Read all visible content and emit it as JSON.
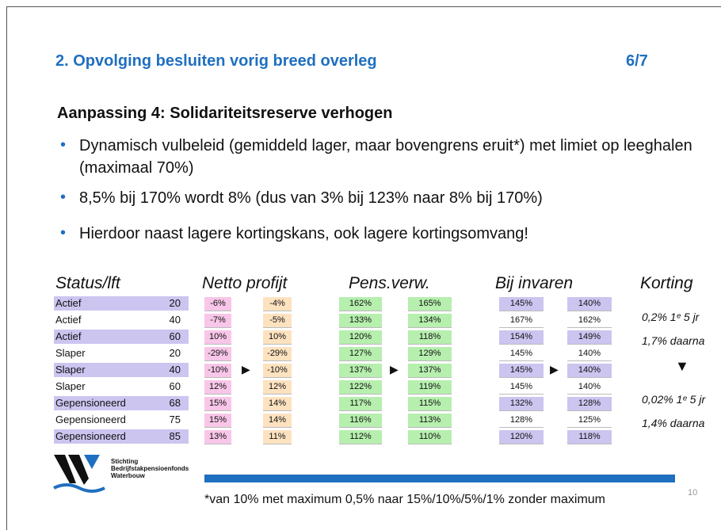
{
  "header": {
    "title": "2. Opvolging besluiten vorig breed overleg",
    "page": "6/7"
  },
  "heading": "Aanpassing 4: Solidariteitsreserve verhogen",
  "bullets": [
    "Dynamisch vulbeleid (gemiddeld lager, maar bovengrens eruit*) met limiet op leeghalen (maximaal 70%)",
    "8,5% bij 170% wordt 8% (dus van 3% bij 123% naar 8% bij 170%)",
    "Hierdoor naast lagere kortingskans, ook lagere kortingsomvang!"
  ],
  "table": {
    "columns": [
      "Status/lft",
      "Netto profijt",
      "Pens.verw.",
      "Bij invaren",
      "Korting"
    ],
    "rows": [
      {
        "status": "Actief",
        "age": "20",
        "netto": [
          "-6%",
          "-4%"
        ],
        "pens": [
          "162%",
          "165%"
        ],
        "invaren": [
          "145%",
          "140%"
        ]
      },
      {
        "status": "Actief",
        "age": "40",
        "netto": [
          "-7%",
          "-5%"
        ],
        "pens": [
          "133%",
          "134%"
        ],
        "invaren": [
          "167%",
          "162%"
        ]
      },
      {
        "status": "Actief",
        "age": "60",
        "netto": [
          "10%",
          "10%"
        ],
        "pens": [
          "120%",
          "118%"
        ],
        "invaren": [
          "154%",
          "149%"
        ]
      },
      {
        "status": "Slaper",
        "age": "20",
        "netto": [
          "-29%",
          "-29%"
        ],
        "pens": [
          "127%",
          "129%"
        ],
        "invaren": [
          "145%",
          "140%"
        ]
      },
      {
        "status": "Slaper",
        "age": "40",
        "netto": [
          "-10%",
          "-10%"
        ],
        "pens": [
          "137%",
          "137%"
        ],
        "invaren": [
          "145%",
          "140%"
        ]
      },
      {
        "status": "Slaper",
        "age": "60",
        "netto": [
          "12%",
          "12%"
        ],
        "pens": [
          "122%",
          "119%"
        ],
        "invaren": [
          "145%",
          "140%"
        ]
      },
      {
        "status": "Gepensioneerd",
        "age": "68",
        "netto": [
          "15%",
          "14%"
        ],
        "pens": [
          "117%",
          "115%"
        ],
        "invaren": [
          "132%",
          "128%"
        ]
      },
      {
        "status": "Gepensioneerd",
        "age": "75",
        "netto": [
          "15%",
          "14%"
        ],
        "pens": [
          "116%",
          "113%"
        ],
        "invaren": [
          "128%",
          "125%"
        ]
      },
      {
        "status": "Gepensioneerd",
        "age": "85",
        "netto": [
          "13%",
          "11%"
        ],
        "pens": [
          "112%",
          "110%"
        ],
        "invaren": [
          "120%",
          "118%"
        ]
      }
    ],
    "korting": [
      "0,2% 1ᵉ 5 jr",
      "1,7% daarna",
      "0,02% 1ᵉ 5 jr",
      "1,4% daarna"
    ]
  },
  "logo": [
    "Stichting",
    "Bedrijfstakpensioenfonds",
    "Waterbouw"
  ],
  "footnote": "*van 10% met maximum 0,5% naar 15%/10%/5%/1% zonder maximum",
  "page_number": "10"
}
